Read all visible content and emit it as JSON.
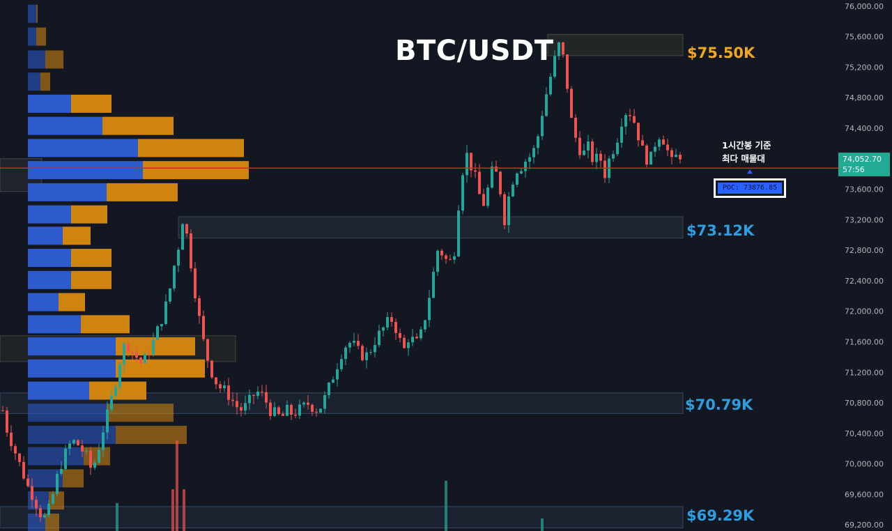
{
  "title": "BTC/USDT",
  "note": {
    "line1": "1시간봉 기준",
    "line2": "최다 매물대"
  },
  "poc_label": "POC: 73876.85",
  "last_price": {
    "price": "74,052.70",
    "countdown": "57:56",
    "color": "#22ab94"
  },
  "levels": [
    {
      "label": "$75.50K",
      "value": 75500,
      "color": "#f0a820"
    },
    {
      "label": "$73.12K",
      "value": 73120,
      "color": "#2d9ee0"
    },
    {
      "label": "$70.79K",
      "value": 70790,
      "color": "#2d9ee0"
    },
    {
      "label": "$69.29K",
      "value": 69290,
      "color": "#2d9ee0"
    }
  ],
  "chart_data": {
    "type": "candlestick",
    "symbol": "BTC/USDT",
    "timeframe_note": "1시간봉 기준",
    "y_axis": {
      "ticks": [
        "76,000.00",
        "75,600.00",
        "75,200.00",
        "74,800.00",
        "74,400.00",
        "74,000.00",
        "73,600.00",
        "73,200.00",
        "72,800.00",
        "72,400.00",
        "72,000.00",
        "71,600.00",
        "71,200.00",
        "70,800.00",
        "70,400.00",
        "70,000.00",
        "69,600.00",
        "69,200.00"
      ],
      "range": [
        69120,
        76080
      ]
    },
    "poc": 73876.85,
    "colors": {
      "up": "#26a69a",
      "down": "#ef5350",
      "poc_line": "#e02424",
      "vp_blue": "#2e5fd6",
      "vp_orange": "#d98a10"
    },
    "close_path": [
      [
        0,
        70700
      ],
      [
        3,
        70450
      ],
      [
        6,
        70300
      ],
      [
        9,
        70150
      ],
      [
        12,
        70000
      ],
      [
        15,
        69850
      ],
      [
        18,
        69700
      ],
      [
        21,
        69600
      ],
      [
        24,
        69480
      ],
      [
        27,
        69350
      ],
      [
        30,
        69300
      ],
      [
        33,
        69400
      ],
      [
        36,
        69600
      ],
      [
        40,
        69900
      ],
      [
        44,
        70100
      ],
      [
        48,
        70250
      ],
      [
        52,
        70300
      ],
      [
        56,
        70200
      ],
      [
        60,
        70100
      ],
      [
        64,
        69900
      ],
      [
        68,
        70150
      ],
      [
        72,
        70450
      ],
      [
        76,
        70700
      ],
      [
        80,
        71000
      ],
      [
        84,
        71350
      ],
      [
        88,
        71600
      ],
      [
        92,
        71500
      ],
      [
        96,
        71400
      ],
      [
        100,
        71300
      ],
      [
        104,
        71450
      ],
      [
        108,
        71600
      ],
      [
        112,
        71800
      ],
      [
        116,
        72000
      ],
      [
        120,
        72300
      ],
      [
        124,
        72700
      ],
      [
        128,
        73000
      ],
      [
        130,
        73400
      ],
      [
        132,
        73000
      ],
      [
        136,
        72500
      ],
      [
        140,
        72000
      ],
      [
        144,
        71600
      ],
      [
        148,
        71300
      ],
      [
        152,
        71100
      ],
      [
        156,
        71000
      ],
      [
        160,
        70950
      ],
      [
        164,
        70850
      ],
      [
        168,
        70750
      ],
      [
        172,
        70700
      ],
      [
        176,
        70800
      ],
      [
        180,
        70900
      ],
      [
        184,
        70950
      ],
      [
        188,
        70850
      ],
      [
        192,
        70700
      ],
      [
        196,
        70650
      ],
      [
        200,
        70600
      ],
      [
        204,
        70700
      ],
      [
        208,
        70650
      ],
      [
        212,
        70700
      ],
      [
        216,
        70750
      ],
      [
        220,
        70800
      ],
      [
        224,
        70700
      ],
      [
        228,
        70750
      ],
      [
        232,
        70900
      ],
      [
        236,
        71100
      ],
      [
        240,
        71300
      ],
      [
        244,
        71500
      ],
      [
        248,
        71600
      ],
      [
        252,
        71550
      ],
      [
        256,
        71450
      ],
      [
        260,
        71400
      ],
      [
        264,
        71500
      ],
      [
        268,
        71650
      ],
      [
        272,
        71750
      ],
      [
        276,
        71850
      ],
      [
        280,
        71900
      ],
      [
        284,
        71650
      ],
      [
        288,
        71500
      ],
      [
        292,
        71700
      ],
      [
        296,
        71550
      ],
      [
        300,
        71700
      ],
      [
        304,
        72000
      ],
      [
        308,
        72400
      ],
      [
        312,
        72800
      ],
      [
        316,
        72750
      ],
      [
        320,
        72600
      ],
      [
        324,
        72800
      ],
      [
        328,
        73600
      ],
      [
        332,
        74100
      ],
      [
        336,
        73900
      ],
      [
        340,
        73700
      ],
      [
        344,
        73350
      ],
      [
        348,
        73600
      ],
      [
        352,
        73900
      ],
      [
        356,
        73700
      ],
      [
        360,
        73200
      ],
      [
        364,
        73600
      ],
      [
        368,
        73850
      ],
      [
        372,
        73900
      ],
      [
        376,
        74000
      ],
      [
        380,
        74050
      ],
      [
        384,
        74300
      ],
      [
        388,
        74700
      ],
      [
        392,
        75000
      ],
      [
        396,
        75300
      ],
      [
        400,
        75550
      ],
      [
        404,
        75100
      ],
      [
        408,
        74500
      ],
      [
        412,
        74200
      ],
      [
        416,
        74050
      ],
      [
        420,
        74150
      ],
      [
        424,
        73950
      ],
      [
        428,
        74050
      ],
      [
        432,
        73800
      ],
      [
        436,
        74050
      ],
      [
        440,
        74200
      ],
      [
        444,
        74500
      ],
      [
        448,
        74650
      ],
      [
        452,
        74550
      ],
      [
        456,
        74300
      ],
      [
        460,
        74050
      ],
      [
        464,
        73950
      ],
      [
        468,
        74200
      ],
      [
        472,
        74350
      ],
      [
        476,
        74150
      ],
      [
        480,
        73950
      ],
      [
        484,
        74050
      ]
    ]
  }
}
